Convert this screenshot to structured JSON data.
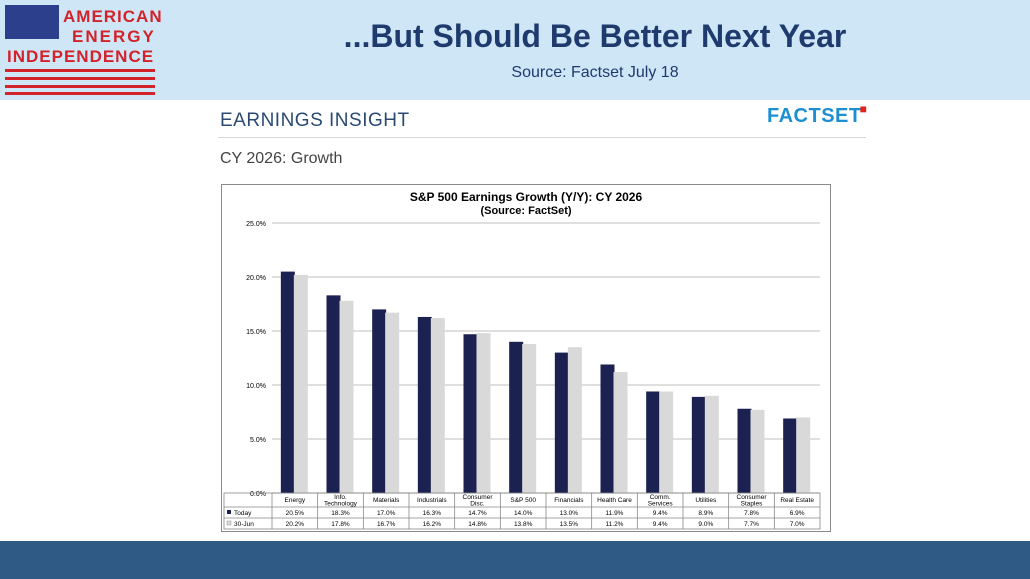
{
  "header": {
    "logo_lines": [
      "AMERICAN",
      "ENERGY",
      "INDEPENDENCE"
    ],
    "title": "...But Should Be Better Next Year",
    "subtitle": "Source: Factset July 18"
  },
  "content": {
    "section_label": "EARNINGS INSIGHT",
    "brand": "FACTSET",
    "chart_heading": "CY 2026: Growth"
  },
  "colors": {
    "header_bg": "#cfe6f7",
    "title": "#1f3b6e",
    "footer": "#2f5a86",
    "series_today": "#1b2150",
    "series_30jun": "#d9d9d9"
  },
  "chart_data": {
    "type": "bar",
    "title": "S&P 500 Earnings Growth (Y/Y): CY 2026",
    "subtitle": "(Source: FactSet)",
    "categories": [
      "Energy",
      "Info. Technology",
      "Materials",
      "Industrials",
      "Consumer Disc.",
      "S&P 500",
      "Financials",
      "Health Care",
      "Comm. Services",
      "Utilities",
      "Consumer Staples",
      "Real Estate"
    ],
    "series": [
      {
        "name": "Today",
        "values": [
          20.5,
          18.3,
          17.0,
          16.3,
          14.7,
          14.0,
          13.0,
          11.9,
          9.4,
          8.9,
          7.8,
          6.9
        ],
        "labels": [
          "20.5%",
          "18.3%",
          "17.0%",
          "16.3%",
          "14.7%",
          "14.0%",
          "13.0%",
          "11.9%",
          "9.4%",
          "8.9%",
          "7.8%",
          "6.9%"
        ]
      },
      {
        "name": "30-Jun",
        "values": [
          20.2,
          17.8,
          16.7,
          16.2,
          14.8,
          13.8,
          13.5,
          11.2,
          9.4,
          9.0,
          7.7,
          7.0
        ],
        "labels": [
          "20.2%",
          "17.8%",
          "16.7%",
          "16.2%",
          "14.8%",
          "13.8%",
          "13.5%",
          "11.2%",
          "9.4%",
          "9.0%",
          "7.7%",
          "7.0%"
        ]
      }
    ],
    "ylim": [
      0,
      25
    ],
    "yticks": [
      "0.0%",
      "5.0%",
      "10.0%",
      "15.0%",
      "20.0%",
      "25.0%"
    ],
    "grid": true,
    "legend_placement": "data-table-below"
  }
}
